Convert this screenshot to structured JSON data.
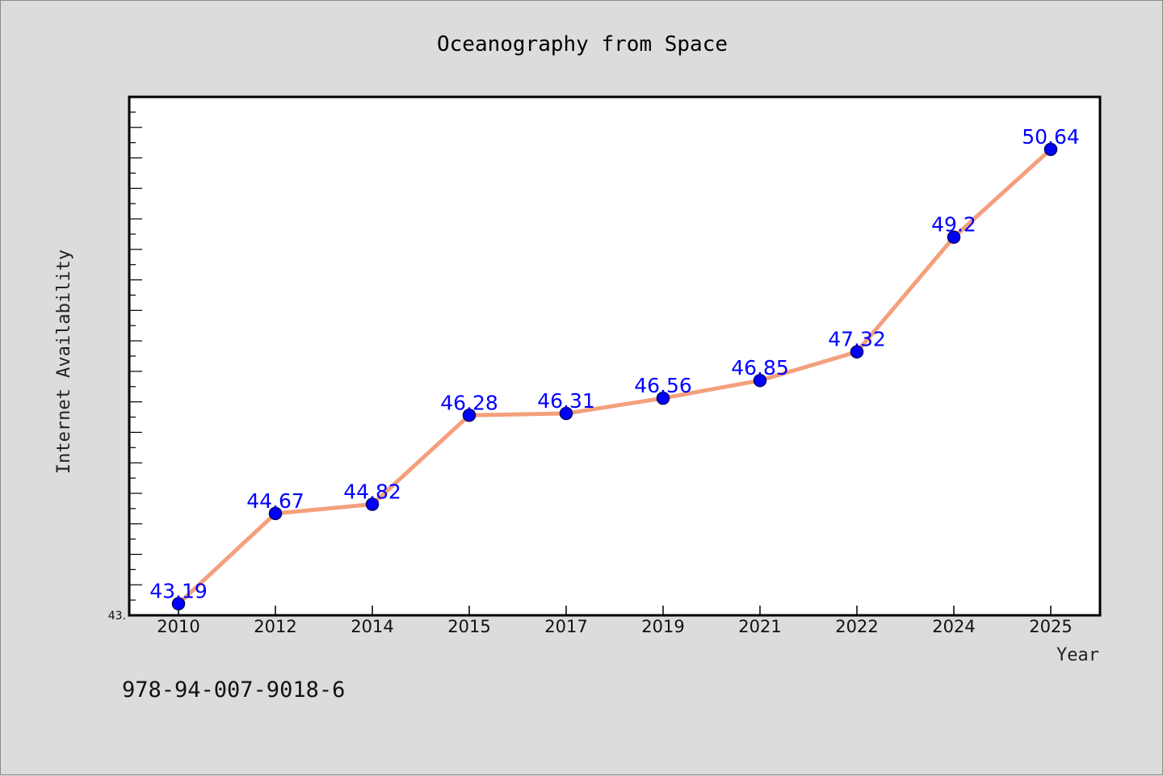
{
  "footer_code": "978-94-007-9018-6",
  "colors": {
    "background": "#dcdcdc",
    "plot_background": "#ffffff",
    "line": "#f4a07c",
    "marker": "#0000ff",
    "data_label": "#0000ff"
  },
  "chart_data": {
    "type": "line",
    "title": "Oceanography from Space",
    "xlabel": "Year",
    "ylabel": "Internet Availability",
    "categories": [
      "2010",
      "2012",
      "2014",
      "2015",
      "2017",
      "2019",
      "2021",
      "2022",
      "2024",
      "2025"
    ],
    "series": [
      {
        "values": [
          43.19,
          44.67,
          44.82,
          46.28,
          46.31,
          46.56,
          46.85,
          47.32,
          49.2,
          50.64
        ],
        "data_labels": [
          "43.19",
          "44.67",
          "44.82",
          "46.28",
          "46.31",
          "46.56",
          "46.85",
          "47.32",
          "49.2",
          "50.64"
        ]
      }
    ],
    "ylim": [
      43.0,
      51.5
    ],
    "ytick_labels": [
      "43."
    ],
    "grid": false,
    "legend": "none"
  }
}
